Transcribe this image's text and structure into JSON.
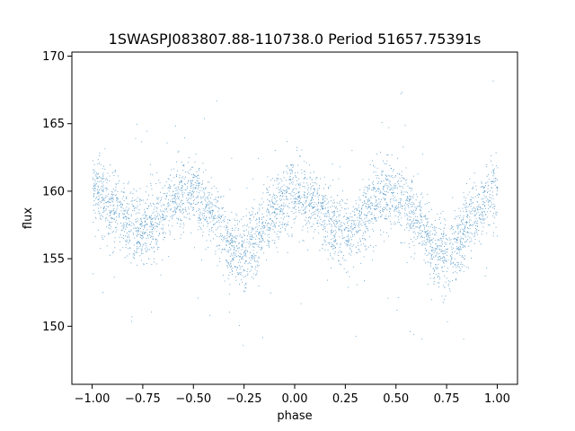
{
  "chart_data": {
    "type": "scatter",
    "title": "1SWASPJ083807.88-110738.0 Period 51657.75391s",
    "xlabel": "phase",
    "ylabel": "flux",
    "xlim": [
      -1.1,
      1.1
    ],
    "ylim": [
      145.7,
      170.3
    ],
    "xticks": [
      -1.0,
      -0.75,
      -0.5,
      -0.25,
      0.0,
      0.25,
      0.5,
      0.75,
      1.0
    ],
    "xtick_labels": [
      "−1.00",
      "−0.75",
      "−0.50",
      "−0.25",
      "0.00",
      "0.25",
      "0.50",
      "0.75",
      "1.00"
    ],
    "yticks": [
      150,
      155,
      160,
      165,
      170
    ],
    "ytick_labels": [
      "150",
      "155",
      "160",
      "165",
      "170"
    ],
    "grid": false,
    "point_color": "#1f77b4",
    "phase_range": [
      -1.0,
      1.0
    ],
    "light_curve": {
      "phase": [
        0.0,
        0.1,
        0.2,
        0.25,
        0.3,
        0.4,
        0.45,
        0.5,
        0.6,
        0.7,
        0.72,
        0.75,
        0.8,
        0.9,
        1.0
      ],
      "flux": [
        160.1,
        158.9,
        157.3,
        157.2,
        157.5,
        159.4,
        159.8,
        159.7,
        158.0,
        155.6,
        155.2,
        155.2,
        156.2,
        158.6,
        160.1
      ]
    },
    "scatter_sigma": 1.3,
    "series": [
      {
        "points_estimate": 20000
      }
    ]
  }
}
